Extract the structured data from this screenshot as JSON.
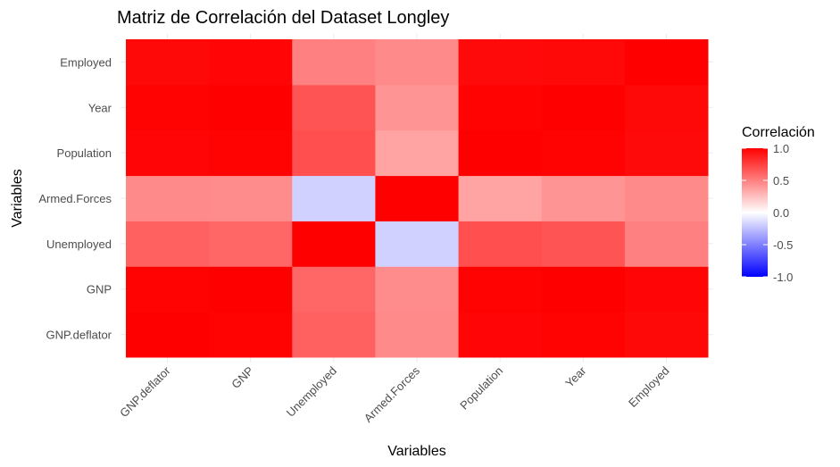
{
  "chart_data": {
    "type": "heatmap",
    "title": "Matriz de Correlación del Dataset Longley",
    "xlabel": "Variables",
    "ylabel": "Variables",
    "variables": [
      "GNP.deflator",
      "GNP",
      "Unemployed",
      "Armed.Forces",
      "Population",
      "Year",
      "Employed"
    ],
    "matrix": [
      [
        1.0,
        0.99,
        0.62,
        0.46,
        0.98,
        0.99,
        0.97
      ],
      [
        0.99,
        1.0,
        0.6,
        0.45,
        0.99,
        1.0,
        0.98
      ],
      [
        0.62,
        0.6,
        1.0,
        -0.18,
        0.69,
        0.67,
        0.5
      ],
      [
        0.46,
        0.45,
        -0.18,
        1.0,
        0.36,
        0.42,
        0.46
      ],
      [
        0.98,
        0.99,
        0.69,
        0.36,
        1.0,
        0.99,
        0.96
      ],
      [
        0.99,
        1.0,
        0.67,
        0.42,
        0.99,
        1.0,
        0.97
      ],
      [
        0.97,
        0.98,
        0.5,
        0.46,
        0.96,
        0.97,
        1.0
      ]
    ],
    "value_range": [
      -1,
      1
    ],
    "color_scale": {
      "low": "#0000ff",
      "mid": "#ffffff",
      "high": "#ff0000"
    },
    "legend": {
      "title": "Correlación",
      "position": "right",
      "ticks": [
        1.0,
        0.5,
        0.0,
        -0.5,
        -1.0
      ],
      "tick_labels": [
        "1.0",
        "0.5",
        "0.0",
        "-0.5",
        "-1.0"
      ]
    },
    "grid": true
  }
}
